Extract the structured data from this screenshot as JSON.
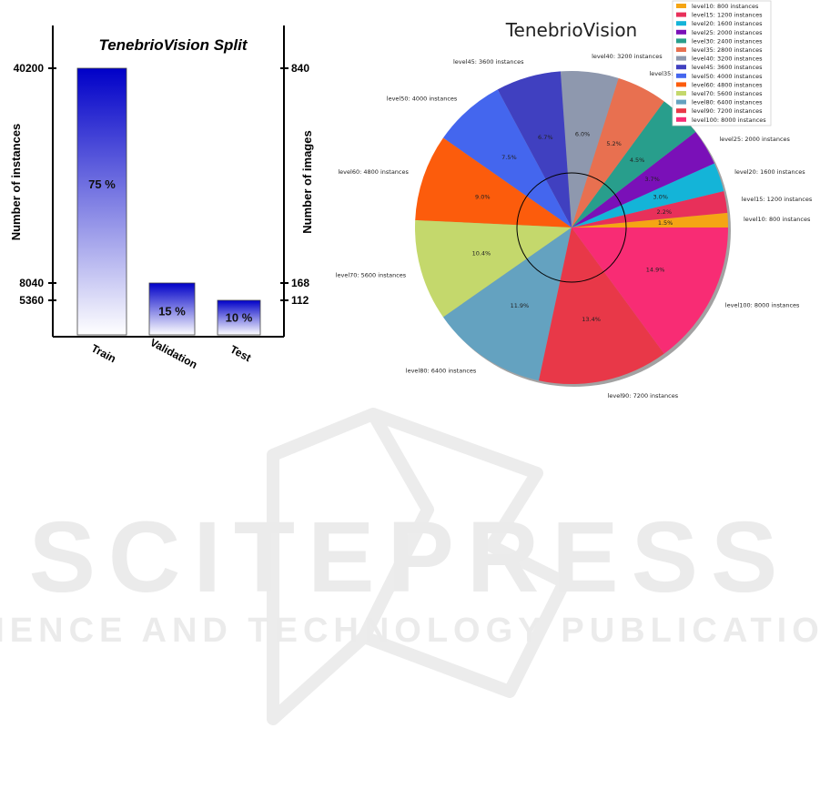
{
  "watermark": {
    "title": "SCITEPRESS",
    "subtitle": "SCIENCE AND TECHNOLOGY PUBLICATIONS",
    "color": "#ebebeb"
  },
  "chart_data": [
    {
      "type": "bar",
      "title": "TenebrioVision Split",
      "categories": [
        "Train",
        "Validation",
        "Test"
      ],
      "series": [
        {
          "values": [
            40200,
            8040,
            5360
          ]
        }
      ],
      "percent_labels": [
        "75 %",
        "15 %",
        "10 %"
      ],
      "ylabel": "Number of  instances",
      "ylabel_right": "Number of images",
      "left_ticks": [
        40200,
        8040,
        5360
      ],
      "right_ticks": [
        840,
        168,
        112
      ],
      "right_values": [
        840,
        168,
        112
      ],
      "colors": {
        "top": "#0000c8",
        "bottom": "#ffffff"
      },
      "grid": false
    },
    {
      "type": "pie",
      "title": "TenebrioVision",
      "legend_position": "top-right",
      "slices": [
        {
          "label": "level10: 800 instances",
          "value": 800,
          "pct": "1.5%",
          "color": "#f5a514"
        },
        {
          "label": "level15: 1200 instances",
          "value": 1200,
          "pct": "2.2%",
          "color": "#e8305a"
        },
        {
          "label": "level20: 1600 instances",
          "value": 1600,
          "pct": "3.0%",
          "color": "#14b4d8"
        },
        {
          "label": "level25: 2000 instances",
          "value": 2000,
          "pct": "3.7%",
          "color": "#7a10b8"
        },
        {
          "label": "level30: 2400 instances",
          "value": 2400,
          "pct": "4.5%",
          "color": "#289e8c"
        },
        {
          "label": "level35: 2800 instances",
          "value": 2800,
          "pct": "5.2%",
          "color": "#e87050"
        },
        {
          "label": "level40: 3200 instances",
          "value": 3200,
          "pct": "6.0%",
          "color": "#8e98ae"
        },
        {
          "label": "level45: 3600 instances",
          "value": 3600,
          "pct": "6.7%",
          "color": "#4040c0"
        },
        {
          "label": "level50: 4000 instances",
          "value": 4000,
          "pct": "7.5%",
          "color": "#4466ee"
        },
        {
          "label": "level60: 4800 instances",
          "value": 4800,
          "pct": "9.0%",
          "color": "#fc5c0c"
        },
        {
          "label": "level70: 5600 instances",
          "value": 5600,
          "pct": "10.4%",
          "color": "#c4d86c"
        },
        {
          "label": "level80: 6400 instances",
          "value": 6400,
          "pct": "11.9%",
          "color": "#64a2c0"
        },
        {
          "label": "level90: 7200 instances",
          "value": 7200,
          "pct": "13.4%",
          "color": "#e83848"
        },
        {
          "label": "level100: 8000 instances",
          "value": 8000,
          "pct": "14.9%",
          "color": "#f82c74"
        }
      ]
    }
  ]
}
